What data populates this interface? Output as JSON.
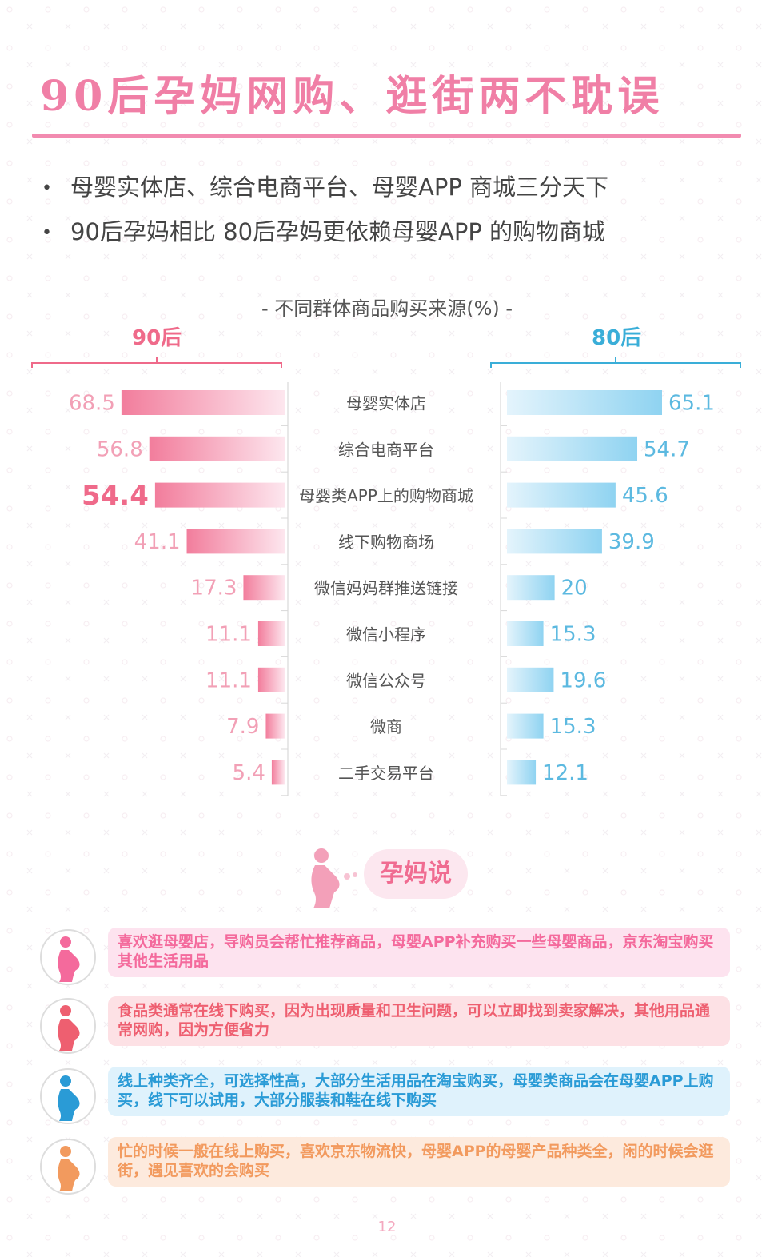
{
  "title": "90后孕妈网购、逛街两不耽误",
  "bullets": [
    "母婴实体店、综合电商平台、母婴APP 商城三分天下",
    "90后孕妈相比 80后孕妈更依赖母婴APP 的购物商城"
  ],
  "colors": {
    "pink": "#f28bb0",
    "blue": "#3aaed8",
    "accent_pink": "#ef6a8a"
  },
  "chart_data": {
    "type": "bar",
    "title": "-   不同群体商品购买来源(%)   -",
    "categories": [
      "母婴实体店",
      "综合电商平台",
      "母婴类APP上的购物商城",
      "线下购物商场",
      "微信妈妈群推送链接",
      "微信小程序",
      "微信公众号",
      "微商",
      "二手交易平台"
    ],
    "series": [
      {
        "name": "90后",
        "values": [
          68.5,
          56.8,
          54.4,
          41.1,
          17.3,
          11.1,
          11.1,
          7.9,
          5.4
        ]
      },
      {
        "name": "80后",
        "values": [
          65.1,
          54.7,
          45.6,
          39.9,
          20,
          15.3,
          19.6,
          15.3,
          12.1
        ]
      }
    ],
    "highlight": {
      "series": "90后",
      "category": "母婴类APP上的购物商城"
    },
    "value_labels": {
      "90后": [
        "68.5",
        "56.8",
        "54.4",
        "41.1",
        "17.3",
        "11.1",
        "11.1",
        "7.9",
        "5.4"
      ],
      "80后": [
        "65.1",
        "54.7",
        "45.6",
        "39.9",
        "20",
        "15.3",
        "19.6",
        "15.3",
        "12.1"
      ]
    },
    "xlim": [
      0,
      70
    ],
    "legend": "top"
  },
  "speaker_label": "孕妈说",
  "quotes": [
    {
      "text": "喜欢逛母婴店，导购员会帮忙推荐商品，母婴APP补充购买一些母婴商品，京东淘宝购买其他生活用品",
      "color": "#f46a9c",
      "bg": "#fde3ef",
      "icon": "pregnant-woman-icon"
    },
    {
      "text": "食品类通常在线下购买，因为出现质量和卫生问题，可以立即找到卖家解决，其他用品通常网购，因为方便省力",
      "color": "#ee5f70",
      "bg": "#fde1e5",
      "icon": "pregnant-woman-icon"
    },
    {
      "text": "线上种类齐全，可选择性高，大部分生活用品在淘宝购买，母婴类商品会在母婴APP上购买，线下可以试用，大部分服装和鞋在线下购买",
      "color": "#2a9bd6",
      "bg": "#dff2fc",
      "icon": "pregnant-woman-icon"
    },
    {
      "text": "忙的时候一般在线上购买，喜欢京东物流快，母婴APP的母婴产品种类全，闲的时候会逛街，遇见喜欢的会购买",
      "color": "#f29a5e",
      "bg": "#fdeadd",
      "icon": "pregnant-woman-icon"
    }
  ],
  "page_number": "12"
}
